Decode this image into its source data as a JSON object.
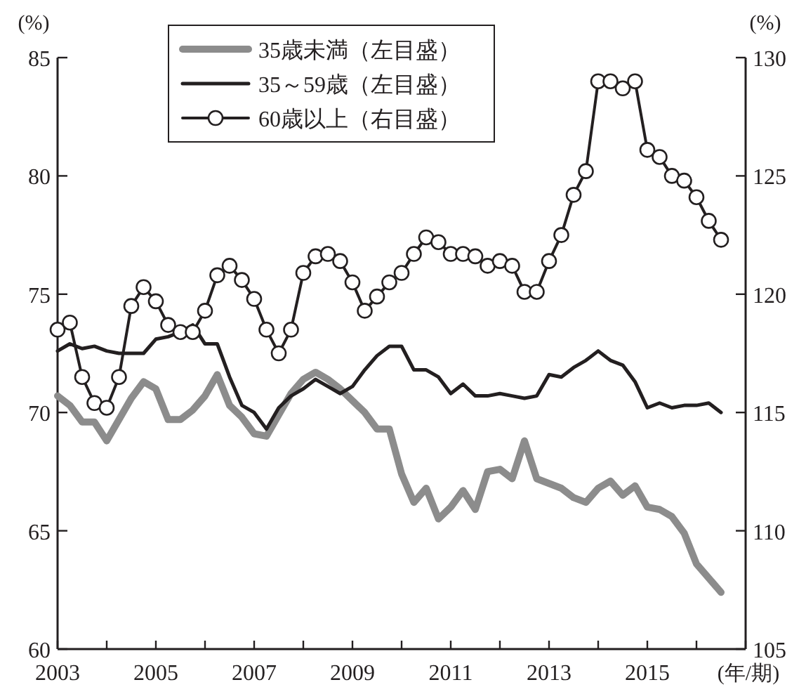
{
  "chart_data": {
    "type": "line",
    "ylabel": "(%)",
    "y2label": "(%)",
    "xlabel": "(年/期)",
    "x": [
      2003,
      2003.25,
      2003.5,
      2003.75,
      2004,
      2004.25,
      2004.5,
      2004.75,
      2005,
      2005.25,
      2005.5,
      2005.75,
      2006,
      2006.25,
      2006.5,
      2006.75,
      2007,
      2007.25,
      2007.5,
      2007.75,
      2008,
      2008.25,
      2008.5,
      2008.75,
      2009,
      2009.25,
      2009.5,
      2009.75,
      2010,
      2010.25,
      2010.5,
      2010.75,
      2011,
      2011.25,
      2011.5,
      2011.75,
      2012,
      2012.25,
      2012.5,
      2012.75,
      2013,
      2013.25,
      2013.5,
      2013.75,
      2014,
      2014.25,
      2014.5,
      2014.75,
      2015,
      2015.25,
      2015.5,
      2015.75,
      2016,
      2016.25,
      2016.5
    ],
    "xlim": [
      2003,
      2017
    ],
    "xticks": [
      2003,
      {
        "value": 2004,
        "label": null
      },
      2005,
      {
        "value": 2006,
        "label": null
      },
      2007,
      {
        "value": 2008,
        "label": null
      },
      2009,
      {
        "value": 2010,
        "label": null
      },
      2011,
      {
        "value": 2012,
        "label": null
      },
      2013,
      {
        "value": 2014,
        "label": null
      },
      2015,
      {
        "value": 2016,
        "label": null
      },
      {
        "value": 2017,
        "label": null
      }
    ],
    "ylim": [
      60,
      85
    ],
    "yticks": [
      60,
      65,
      70,
      75,
      80,
      85
    ],
    "y2lim": [
      105,
      130
    ],
    "y2ticks": [
      105,
      110,
      115,
      120,
      125,
      130
    ],
    "legend": "top left",
    "grid": false,
    "series": [
      {
        "name": "35歳未満（左目盛）",
        "color": "#8c8c8c",
        "marker": "none",
        "values": [
          70.7,
          70.3,
          69.6,
          69.6,
          68.8,
          69.7,
          70.6,
          71.3,
          71.0,
          69.7,
          69.7,
          70.1,
          70.7,
          71.6,
          70.3,
          69.8,
          69.1,
          69.0,
          69.9,
          70.8,
          71.4,
          71.7,
          71.4,
          71.0,
          70.5,
          70.0,
          69.3,
          69.3,
          67.4,
          66.2,
          66.8,
          65.5,
          66.0,
          66.7,
          65.9,
          67.5,
          67.6,
          67.2,
          68.8,
          67.2,
          67.0,
          66.8,
          66.4,
          66.2,
          66.8,
          67.1,
          66.5,
          66.9,
          66.0,
          65.9,
          65.6,
          64.9,
          63.6,
          63.0,
          62.4
        ]
      },
      {
        "name": "35～59歳（左目盛）",
        "color": "#231f20",
        "marker": "none",
        "values": [
          72.6,
          72.9,
          72.7,
          72.8,
          72.6,
          72.5,
          72.5,
          72.5,
          73.1,
          73.2,
          73.4,
          73.7,
          72.9,
          72.9,
          71.5,
          70.3,
          70.0,
          69.3,
          70.2,
          70.7,
          71.0,
          71.4,
          71.1,
          70.8,
          71.1,
          71.8,
          72.4,
          72.8,
          72.8,
          71.8,
          71.8,
          71.5,
          70.8,
          71.2,
          70.7,
          70.7,
          70.8,
          70.7,
          70.6,
          70.7,
          71.6,
          71.5,
          71.9,
          72.2,
          72.6,
          72.2,
          72.0,
          71.3,
          70.2,
          70.4,
          70.2,
          70.3,
          70.3,
          70.4,
          70.0
        ]
      },
      {
        "name": "60歳以上（右目盛）",
        "color": "#231f20",
        "marker": "circle",
        "axis": "y2",
        "values": [
          118.5,
          118.8,
          116.5,
          115.4,
          115.2,
          116.5,
          119.5,
          120.3,
          119.7,
          118.7,
          118.4,
          118.4,
          119.3,
          120.8,
          121.2,
          120.6,
          119.8,
          118.5,
          117.5,
          118.5,
          120.9,
          121.6,
          121.7,
          121.4,
          120.5,
          119.3,
          119.9,
          120.5,
          120.9,
          121.7,
          122.4,
          122.2,
          121.7,
          121.7,
          121.6,
          121.2,
          121.4,
          121.2,
          120.1,
          120.1,
          121.4,
          122.5,
          124.2,
          125.2,
          129.0,
          129.0,
          128.7,
          129.0,
          126.1,
          125.8,
          125.0,
          124.8,
          124.1,
          123.1,
          122.3
        ]
      }
    ]
  }
}
